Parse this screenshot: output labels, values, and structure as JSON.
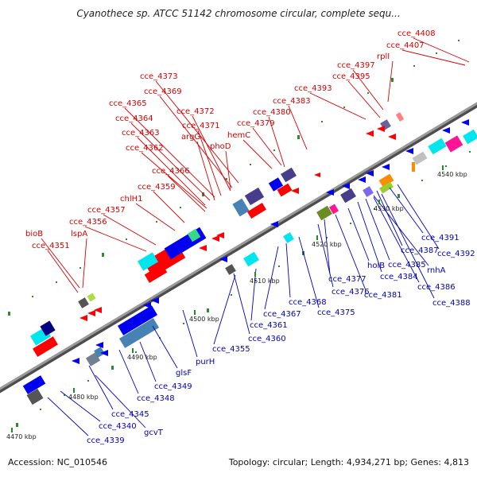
{
  "title": "Cyanothece sp. ATCC 51142 chromosome circular, complete sequ...",
  "footer": {
    "accession": "Accession: NC_010546",
    "summary": "Topology: circular; Length: 4,934,271 bp; Genes: 4,813"
  },
  "colors": {
    "backbone": "#808080",
    "forward_label": "#d40000",
    "reverse_label": "#0000bb",
    "tick_dot": "#2e8b2e"
  },
  "kbp_ticks": [
    "4470 kbp",
    "4480 kbp",
    "4490 kbp",
    "4500 kbp",
    "4510 kbp",
    "4520 kbp",
    "4530 kbp",
    "4540 kbp"
  ],
  "upper_labels": [
    "cce_4408",
    "cce_4407",
    "rplI",
    "cce_4397",
    "cce_4395",
    "cce_4393",
    "cce_4383",
    "cce_4380",
    "cce_4379",
    "hemC",
    "cce_4373",
    "cce_4369",
    "cce_4372",
    "cce_4365",
    "cce_4371",
    "cce_4364",
    "argG",
    "cce_4363",
    "phoD",
    "cce_4362",
    "cce_4366",
    "cce_4359",
    "chlH1",
    "cce_4357",
    "cce_4356",
    "bioB",
    "lspA",
    "cce_4351"
  ],
  "lower_labels": [
    "cce_4391",
    "cce_4392",
    "cce_4387",
    "rnhA",
    "cce_4385",
    "cce_4384",
    "holB",
    "cce_4386",
    "cce_4377",
    "cce_4388",
    "cce_4376",
    "cce_4381",
    "cce_4368",
    "cce_4367",
    "cce_4375",
    "cce_4361",
    "cce_4360",
    "cce_4355",
    "purH",
    "glsF",
    "cce_4349",
    "cce_4348",
    "cce_4345",
    "cce_4340",
    "gcvT",
    "cce_4339"
  ]
}
